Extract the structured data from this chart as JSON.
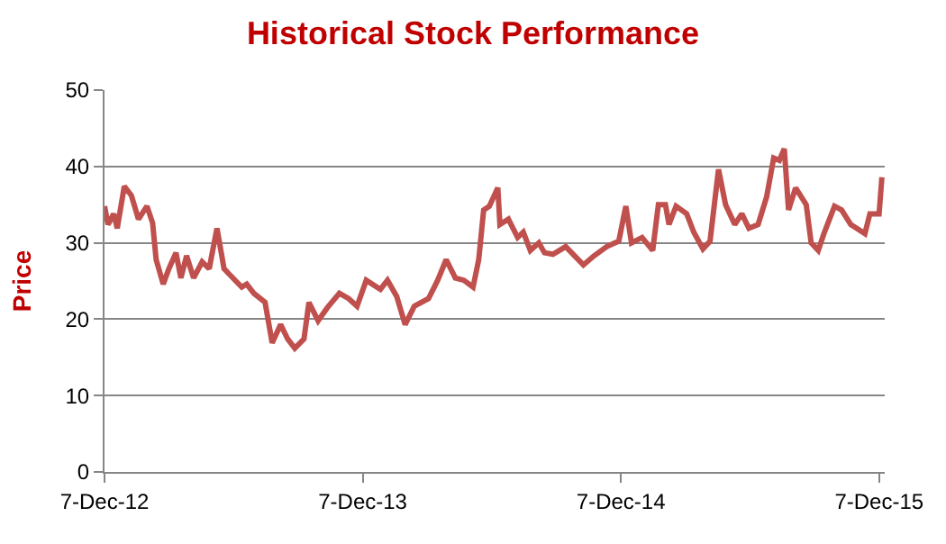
{
  "chart_data": {
    "type": "line",
    "title": "Historical Stock Performance",
    "ylabel": "Price",
    "x": [
      "2012-12-07",
      "2012-12-12",
      "2012-12-20",
      "2012-12-25",
      "2013-01-04",
      "2013-01-14",
      "2013-01-24",
      "2013-02-05",
      "2013-02-13",
      "2013-02-18",
      "2013-02-28",
      "2013-03-08",
      "2013-03-18",
      "2013-03-25",
      "2013-04-02",
      "2013-04-12",
      "2013-04-24",
      "2013-05-04",
      "2013-05-15",
      "2013-05-25",
      "2013-06-19",
      "2013-06-26",
      "2013-07-06",
      "2013-07-22",
      "2013-08-01",
      "2013-08-13",
      "2013-08-23",
      "2013-09-02",
      "2013-09-15",
      "2013-09-22",
      "2013-10-05",
      "2013-10-18",
      "2013-11-04",
      "2013-11-17",
      "2013-11-29",
      "2013-12-12",
      "2014-01-01",
      "2014-01-11",
      "2014-01-24",
      "2014-02-05",
      "2014-02-18",
      "2014-03-10",
      "2014-03-23",
      "2014-04-04",
      "2014-04-17",
      "2014-04-29",
      "2014-05-12",
      "2014-05-20",
      "2014-05-27",
      "2014-06-04",
      "2014-06-16",
      "2014-06-19",
      "2014-07-01",
      "2014-07-14",
      "2014-07-22",
      "2014-08-01",
      "2014-08-13",
      "2014-08-21",
      "2014-09-02",
      "2014-09-20",
      "2014-10-15",
      "2014-10-30",
      "2014-11-17",
      "2014-11-29",
      "2014-12-04",
      "2014-12-14",
      "2014-12-22",
      "2015-01-06",
      "2015-01-21",
      "2015-01-29",
      "2015-02-08",
      "2015-02-13",
      "2015-02-23",
      "2015-03-10",
      "2015-03-20",
      "2015-04-02",
      "2015-04-12",
      "2015-04-24",
      "2015-05-04",
      "2015-05-17",
      "2015-05-27",
      "2015-06-06",
      "2015-06-19",
      "2015-07-01",
      "2015-07-11",
      "2015-07-19",
      "2015-07-26",
      "2015-08-01",
      "2015-08-11",
      "2015-08-26",
      "2015-09-02",
      "2015-09-12",
      "2015-09-20",
      "2015-10-05",
      "2015-10-15",
      "2015-10-28",
      "2015-11-17",
      "2015-11-24",
      "2015-12-07",
      "2015-12-11"
    ],
    "series": [
      {
        "color": "#c0504d",
        "values": [
          34.8,
          32.4,
          33.8,
          31.9,
          37.4,
          36.2,
          33.1,
          34.8,
          32.6,
          27.8,
          24.6,
          26.6,
          28.7,
          25.4,
          28.3,
          25.4,
          27.5,
          26.6,
          31.9,
          26.6,
          24.2,
          24.6,
          23.4,
          22.2,
          16.9,
          19.3,
          17.4,
          16.2,
          17.4,
          22.2,
          19.8,
          21.5,
          23.4,
          22.7,
          21.7,
          25.1,
          23.9,
          25.1,
          23.0,
          19.3,
          21.7,
          22.7,
          25.1,
          27.8,
          25.4,
          25.1,
          24.2,
          27.8,
          34.3,
          34.8,
          37.2,
          32.4,
          33.1,
          30.7,
          31.4,
          29.0,
          30.0,
          28.7,
          28.5,
          29.5,
          27.1,
          28.3,
          29.5,
          30.0,
          30.2,
          34.8,
          30.0,
          30.7,
          29.0,
          35.0,
          35.0,
          32.4,
          34.8,
          33.8,
          31.4,
          29.2,
          30.2,
          39.6,
          35.0,
          32.4,
          33.8,
          31.9,
          32.4,
          36.0,
          41.1,
          40.8,
          42.3,
          34.3,
          37.2,
          35.0,
          30.0,
          29.0,
          31.2,
          34.8,
          34.3,
          32.4,
          31.2,
          33.8,
          33.8,
          38.6
        ]
      }
    ],
    "xlim": [
      "2012-12-07",
      "2015-12-15"
    ],
    "xticks": [
      {
        "value": "2012-12-07",
        "label": "7-Dec-12"
      },
      {
        "value": "2013-12-07",
        "label": "7-Dec-13"
      },
      {
        "value": "2014-12-07",
        "label": "7-Dec-14"
      },
      {
        "value": "2015-12-07",
        "label": "7-Dec-15"
      }
    ],
    "ylim": [
      0,
      50
    ],
    "yticks": [
      0,
      10,
      20,
      30,
      40,
      50
    ],
    "grid": "y",
    "marker": "none",
    "line_style": "solid"
  }
}
